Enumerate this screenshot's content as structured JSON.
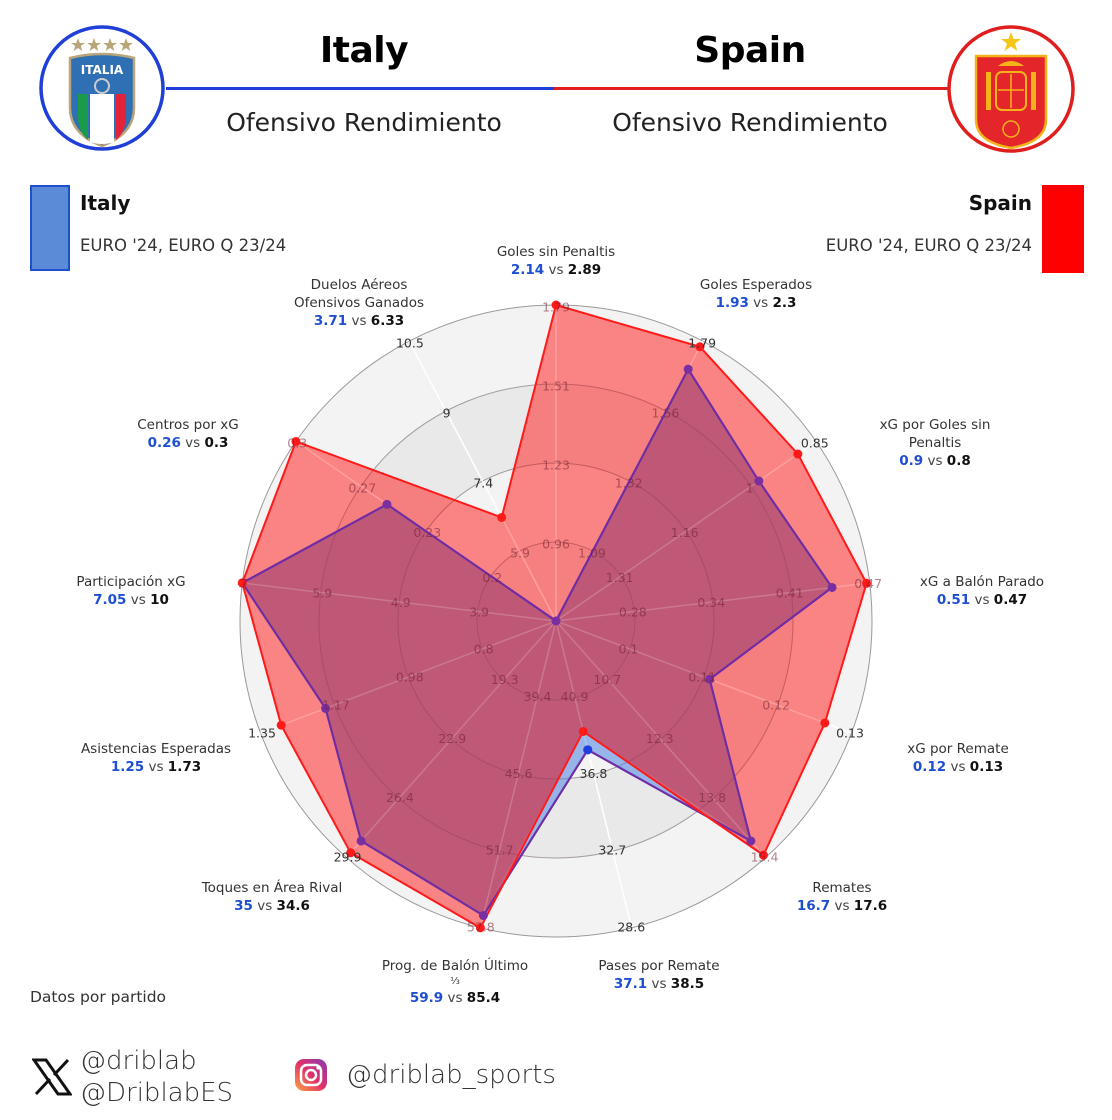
{
  "header": {
    "left_team": "Italy",
    "right_team": "Spain",
    "left_subtitle": "Ofensivo Rendimiento",
    "right_subtitle": "Ofensivo Rendimiento",
    "left_crest": {
      "text": "ITALIA",
      "stars": 4
    },
    "right_crest": {
      "stars": 1
    }
  },
  "legend": {
    "left": {
      "name": "Italy",
      "competitions": "EURO '24, EURO Q 23/24",
      "color": "#5b8ad6",
      "border": "#1f4fd1"
    },
    "right": {
      "name": "Spain",
      "competitions": "EURO '24, EURO Q 23/24",
      "color": "#ff0000"
    }
  },
  "colors": {
    "italy_line": "#1f3fe0",
    "spain_line": "#ff1a1a",
    "spain_fill": "rgba(255,40,40,0.55)",
    "italy_fill": "rgba(120,160,230,0.55)",
    "overlap_fill": "#d45e70",
    "label_blue": "#1f4fd1"
  },
  "chart_data": {
    "type": "radar",
    "title": "Ofensivo Rendimiento",
    "series": [
      {
        "name": "Italy",
        "values": [
          2.14,
          1.93,
          0.9,
          0.51,
          0.12,
          16.7,
          37.1,
          59.9,
          35,
          1.25,
          7.05,
          0.26,
          3.71
        ]
      },
      {
        "name": "Spain",
        "values": [
          2.89,
          2.3,
          0.8,
          0.47,
          0.13,
          17.6,
          38.5,
          85.4,
          34.6,
          1.73,
          10,
          0.3,
          6.33
        ]
      }
    ],
    "categories": [
      "Goles sin Penaltis",
      "Goles Esperados",
      "xG por Goles sin Penaltis",
      "xG a Balón Parado",
      "xG por Remate",
      "Remates",
      "Pases por Remate",
      "Prog. de Balón Último ⅓",
      "Toques en Área Rival",
      "Asistencias Esperadas",
      "Participación xG",
      "Centros por xG",
      "Duelos Aéreos Ofensivos Ganados"
    ],
    "plot_fraction": {
      "italy": [
        0.0,
        0.9,
        0.78,
        0.88,
        0.52,
        0.93,
        0.42,
        0.96,
        0.93,
        0.78,
        1.0,
        0.65,
        0.0
      ],
      "spain": [
        1.0,
        0.98,
        0.93,
        0.99,
        0.91,
        0.99,
        0.36,
        1.0,
        0.98,
        0.93,
        1.0,
        1.0,
        0.37
      ]
    },
    "ring_ticks": [
      [
        "0.96",
        "1.23",
        "1.51",
        "1.79"
      ],
      [
        "1.09",
        "1.32",
        "1.56",
        "1.79"
      ],
      [
        "1.31",
        "1.16",
        "1",
        "0.85"
      ],
      [
        "0.28",
        "0.34",
        "0.41",
        "0.47"
      ],
      [
        "0.1",
        "0.11",
        "0.12",
        "0.13"
      ],
      [
        "10.7",
        "12.3",
        "13.8",
        "15.4"
      ],
      [
        "40.9",
        "36.8",
        "32.7",
        "28.6"
      ],
      [
        "39.4",
        "45.6",
        "51.7",
        "57.8"
      ],
      [
        "19.3",
        "22.9",
        "26.4",
        "29.9"
      ],
      [
        "0.8",
        "0.98",
        "1.17",
        "1.35"
      ],
      [
        "3.9",
        "4.9",
        "5.9",
        "7"
      ],
      [
        "0.2",
        "0.23",
        "0.27",
        "0.3"
      ],
      [
        "5.9",
        "7.4",
        "9",
        "10.5"
      ]
    ],
    "grid": true,
    "legend_position": "top"
  },
  "labels": [
    {
      "l1": "Goles sin Penaltis",
      "l2": "",
      "a": "2.14",
      "b": "2.89"
    },
    {
      "l1": "Goles Esperados",
      "l2": "",
      "a": "1.93",
      "b": "2.3"
    },
    {
      "l1": "xG por Goles sin",
      "l2": "Penaltis",
      "a": "0.9",
      "b": "0.8"
    },
    {
      "l1": "xG a Balón Parado",
      "l2": "",
      "a": "0.51",
      "b": "0.47"
    },
    {
      "l1": "xG por Remate",
      "l2": "",
      "a": "0.12",
      "b": "0.13"
    },
    {
      "l1": "Remates",
      "l2": "",
      "a": "16.7",
      "b": "17.6"
    },
    {
      "l1": "Pases por Remate",
      "l2": "",
      "a": "37.1",
      "b": "38.5"
    },
    {
      "l1": "Prog. de Balón Último",
      "l2": "⅓",
      "a": "59.9",
      "b": "85.4"
    },
    {
      "l1": "Toques en Área Rival",
      "l2": "",
      "a": "35",
      "b": "34.6"
    },
    {
      "l1": "Asistencias Esperadas",
      "l2": "",
      "a": "1.25",
      "b": "1.73"
    },
    {
      "l1": "Participación xG",
      "l2": "",
      "a": "7.05",
      "b": "10"
    },
    {
      "l1": "Centros por xG",
      "l2": "",
      "a": "0.26",
      "b": "0.3"
    },
    {
      "l1": "Duelos Aéreos",
      "l2": "Ofensivos Ganados",
      "a": "3.71",
      "b": "6.33"
    }
  ],
  "vs_text": "vs",
  "footer": {
    "note": "Datos por partido",
    "x_handles": [
      "@driblab",
      "@DriblabES"
    ],
    "instagram_handle": "@driblab_sports"
  }
}
